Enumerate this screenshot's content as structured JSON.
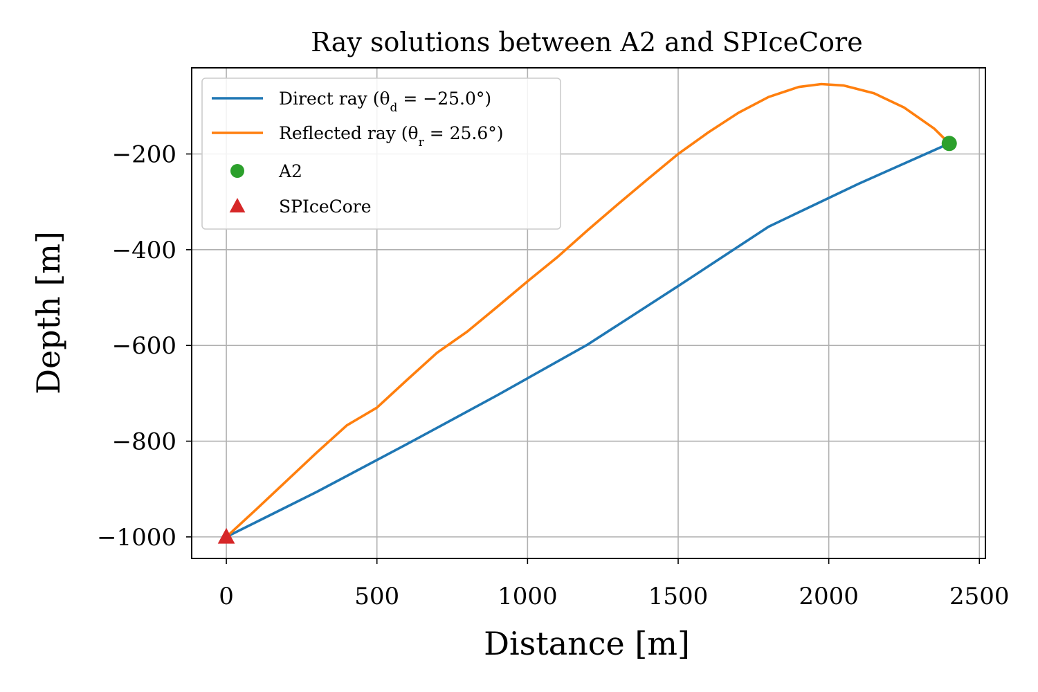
{
  "chart_data": {
    "type": "line",
    "title": "Ray solutions between A2 and SPIceCore",
    "xlabel": "Distance [m]",
    "ylabel": "Depth [m]",
    "xlim": [
      -115,
      2520
    ],
    "ylim": [
      -1045,
      -20
    ],
    "xticks": [
      0,
      500,
      1000,
      1500,
      2000,
      2500
    ],
    "yticks": [
      -200,
      -400,
      -600,
      -800,
      -1000
    ],
    "xtick_labels": [
      "0",
      "500",
      "1000",
      "1500",
      "2000",
      "2500"
    ],
    "ytick_labels": [
      "−200",
      "−400",
      "−600",
      "−800",
      "−1000"
    ],
    "grid": true,
    "legend_position": "top-left",
    "series": [
      {
        "name": "Direct ray (θd = −25.0°)",
        "label_main": "Direct ray (θ",
        "label_sub": "d",
        "label_rest": " = −25.0°)",
        "kind": "line",
        "color": "#1f77b4",
        "x": [
          0,
          300,
          600,
          900,
          1200,
          1500,
          1800,
          2100,
          2400
        ],
        "y": [
          -1000,
          -906,
          -806,
          -704,
          -598,
          -476,
          -352,
          -262,
          -178
        ]
      },
      {
        "name": "Reflected ray (θr = 25.6°)",
        "label_main": "Reflected ray (θ",
        "label_sub": "r",
        "label_rest": " = 25.6°)",
        "kind": "line",
        "color": "#ff7f0e",
        "x": [
          0,
          100,
          200,
          300,
          400,
          500,
          600,
          700,
          800,
          900,
          1000,
          1100,
          1200,
          1300,
          1400,
          1500,
          1600,
          1700,
          1800,
          1900,
          1975,
          2050,
          2150,
          2250,
          2350,
          2400
        ],
        "y": [
          -1000,
          -942,
          -883,
          -824,
          -767,
          -730,
          -672,
          -615,
          -571,
          -519,
          -466,
          -415,
          -359,
          -305,
          -252,
          -200,
          -155,
          -114,
          -81,
          -60,
          -54,
          -57,
          -73,
          -103,
          -147,
          -178
        ]
      },
      {
        "name": "A2",
        "kind": "marker",
        "marker": "circle",
        "color": "#2ca02c",
        "x": [
          2400
        ],
        "y": [
          -178
        ]
      },
      {
        "name": "SPIceCore",
        "kind": "marker",
        "marker": "triangle",
        "color": "#d62728",
        "x": [
          0
        ],
        "y": [
          -1000
        ]
      }
    ]
  }
}
